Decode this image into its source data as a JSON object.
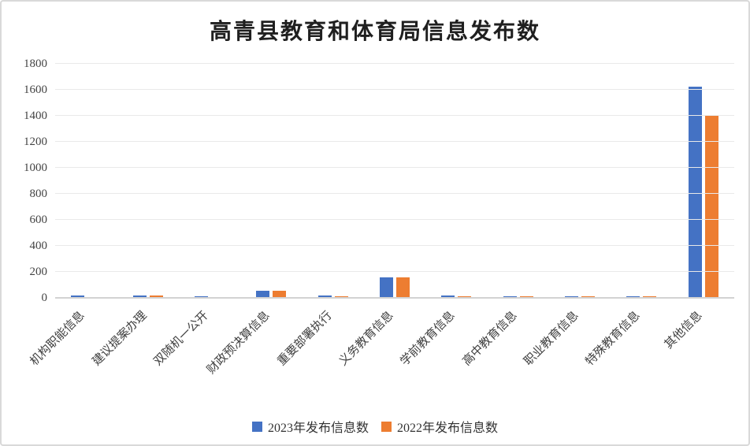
{
  "chart": {
    "background": "#ffffff",
    "border_color": "#d9d9d9",
    "gridline_color": "#e9e9e9",
    "axis_line_color": "#d3d3d3",
    "axis_text_color": "#404040"
  },
  "chart_data": {
    "type": "bar",
    "title": "高青县教育和体育局信息发布数",
    "xlabel": "",
    "ylabel": "",
    "grid": true,
    "legend_position": "bottom",
    "ylim": [
      0,
      1800
    ],
    "ytick_step": 200,
    "yticks": [
      0,
      200,
      400,
      600,
      800,
      1000,
      1200,
      1400,
      1600,
      1800
    ],
    "categories": [
      "机构职能信息",
      "建议提案办理",
      "双随机一公开",
      "财政预决算信息",
      "重要部署执行",
      "义务教育信息",
      "学前教育信息",
      "高中教育信息",
      "职业教育信息",
      "特殊教育信息",
      "其他信息"
    ],
    "series": [
      {
        "name": "2023年发布信息数",
        "color": "#4472C4",
        "values": [
          18,
          20,
          12,
          55,
          20,
          158,
          21,
          13,
          13,
          12,
          1625
        ]
      },
      {
        "name": "2022年发布信息数",
        "color": "#ED7D31",
        "values": [
          8,
          18,
          8,
          52,
          15,
          155,
          11,
          13,
          13,
          12,
          1400
        ]
      }
    ]
  }
}
